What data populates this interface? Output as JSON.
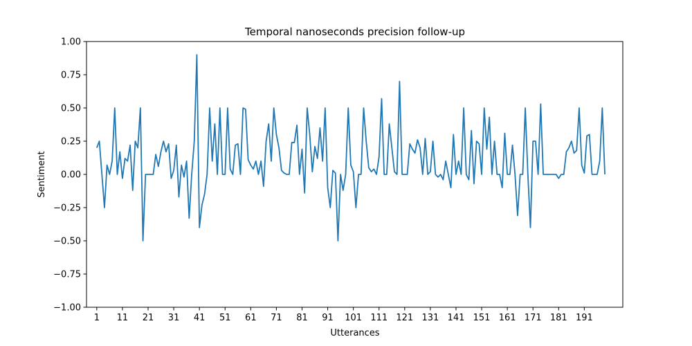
{
  "chart_data": {
    "type": "line",
    "title": "Temporal nanoseconds precision follow-up",
    "xlabel": "Utterances",
    "ylabel": "Sentiment",
    "xlim": [
      -3,
      206
    ],
    "ylim": [
      -1.0,
      1.0
    ],
    "grid": false,
    "line_color": "#1f77b4",
    "x_ticks": [
      1,
      11,
      21,
      31,
      41,
      51,
      61,
      71,
      81,
      91,
      101,
      111,
      121,
      131,
      141,
      151,
      161,
      171,
      181,
      191
    ],
    "x_tick_labels": [
      "1",
      "11",
      "21",
      "31",
      "41",
      "51",
      "61",
      "71",
      "81",
      "91",
      "101",
      "111",
      "121",
      "131",
      "141",
      "151",
      "161",
      "171",
      "181",
      "191"
    ],
    "y_ticks": [
      -1.0,
      -0.75,
      -0.5,
      -0.25,
      0.0,
      0.25,
      0.5,
      0.75,
      1.0
    ],
    "y_tick_labels": [
      "−1.00",
      "−0.75",
      "−0.50",
      "−0.25",
      "0.00",
      "0.25",
      "0.50",
      "0.75",
      "1.00"
    ],
    "x_start": 1,
    "values": [
      0.2,
      0.25,
      0.0,
      -0.25,
      0.07,
      0.0,
      0.1,
      0.5,
      0.0,
      0.17,
      -0.03,
      0.12,
      0.1,
      0.22,
      -0.12,
      0.25,
      0.2,
      0.5,
      -0.5,
      0.0,
      0.0,
      0.0,
      0.0,
      0.15,
      0.06,
      0.17,
      0.25,
      0.17,
      0.23,
      -0.03,
      0.03,
      0.22,
      -0.17,
      0.07,
      -0.02,
      0.1,
      -0.33,
      0.0,
      0.25,
      0.9,
      -0.4,
      -0.23,
      -0.15,
      0.0,
      0.5,
      0.1,
      0.38,
      0.0,
      0.5,
      0.0,
      0.0,
      0.5,
      0.04,
      0.0,
      0.22,
      0.23,
      0.0,
      0.5,
      0.49,
      0.11,
      0.07,
      0.04,
      0.1,
      0.0,
      0.1,
      -0.09,
      0.25,
      0.38,
      0.1,
      0.5,
      0.3,
      0.2,
      0.03,
      0.01,
      0.0,
      0.0,
      0.24,
      0.24,
      0.37,
      0.0,
      0.19,
      -0.14,
      0.5,
      0.3,
      0.02,
      0.21,
      0.12,
      0.35,
      0.1,
      0.5,
      -0.1,
      -0.25,
      0.03,
      0.01,
      -0.5,
      0.0,
      -0.12,
      0.0,
      0.5,
      0.07,
      0.02,
      -0.25,
      0.0,
      0.0,
      0.5,
      0.25,
      0.05,
      0.02,
      0.04,
      0.0,
      0.13,
      0.57,
      0.0,
      0.0,
      0.38,
      0.2,
      0.02,
      0.0,
      0.7,
      0.0,
      0.0,
      0.0,
      0.23,
      0.19,
      0.16,
      0.26,
      0.2,
      0.0,
      0.27,
      0.0,
      0.02,
      0.25,
      0.0,
      -0.02,
      0.0,
      -0.04,
      0.1,
      0.0,
      -0.1,
      0.3,
      0.0,
      0.1,
      0.0,
      0.5,
      0.0,
      -0.04,
      0.33,
      -0.07,
      0.25,
      0.23,
      0.0,
      0.5,
      0.19,
      0.43,
      0.0,
      0.25,
      0.0,
      0.0,
      -0.1,
      0.31,
      0.0,
      0.0,
      0.22,
      0.0,
      -0.31,
      0.0,
      0.0,
      0.5,
      0.0,
      -0.4,
      0.25,
      0.25,
      0.0,
      0.53,
      0.0,
      0.0,
      0.0,
      0.0,
      0.0,
      0.0,
      -0.03,
      0.0,
      0.0,
      0.17,
      0.2,
      0.25,
      0.16,
      0.18,
      0.5,
      0.07,
      0.01,
      0.29,
      0.3,
      0.0,
      0.0,
      0.0,
      0.1,
      0.5,
      0.0
    ]
  }
}
